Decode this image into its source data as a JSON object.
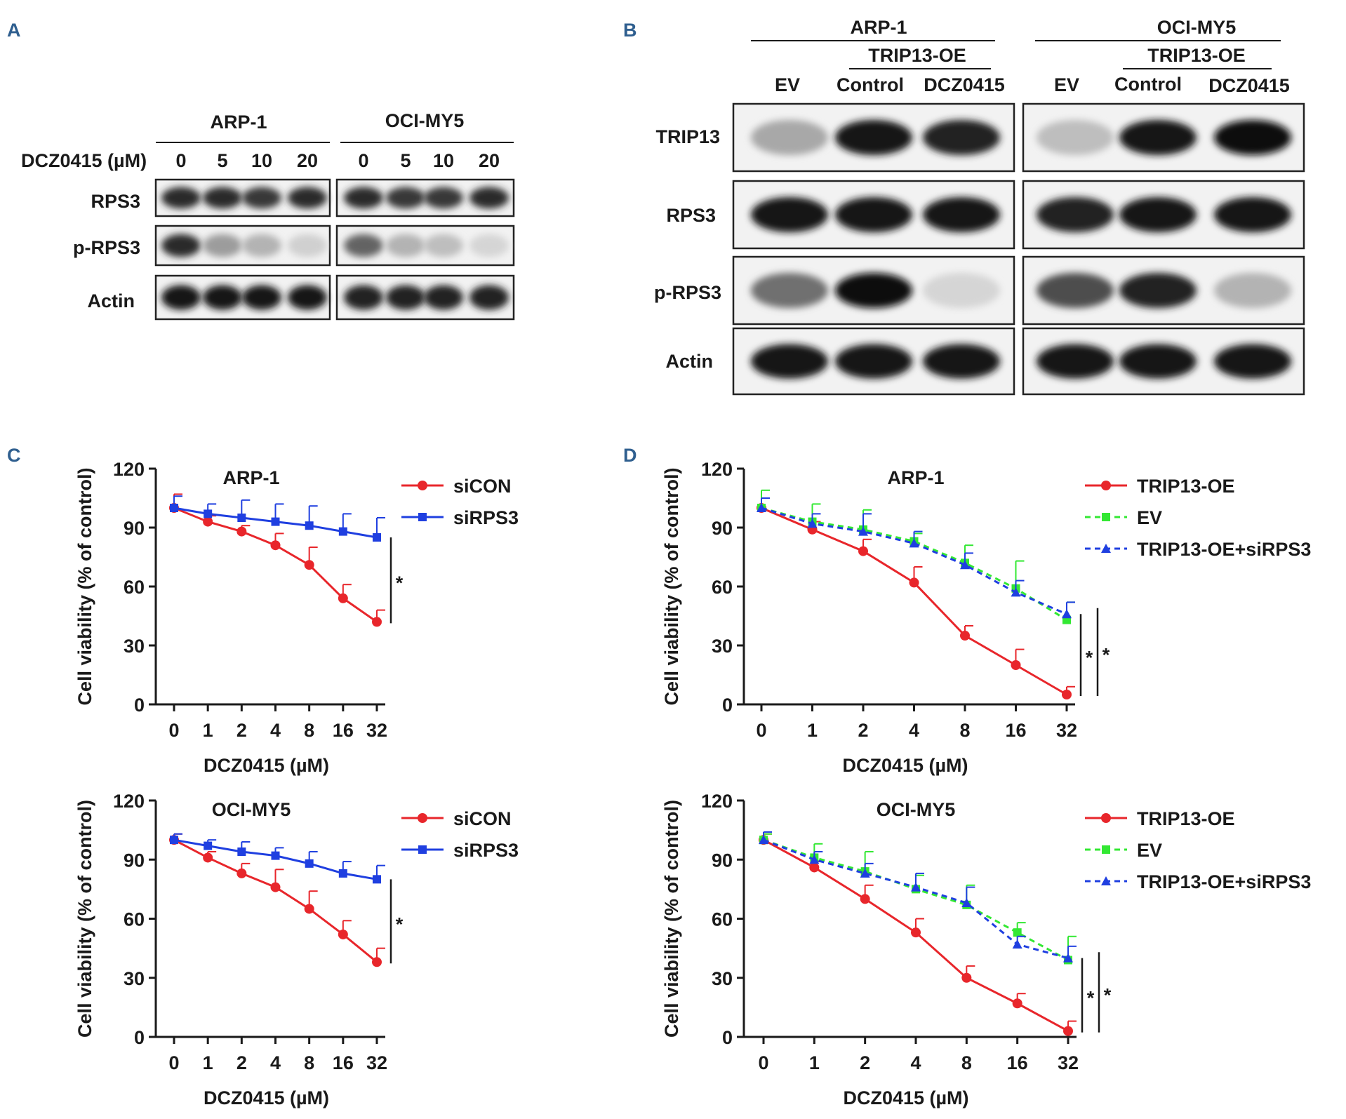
{
  "panels": {
    "A": {
      "letter": "A",
      "groups": [
        "ARP-1",
        "OCI-MY5"
      ],
      "dose_label": "DCZ0415 (µM)",
      "doses": [
        "0",
        "5",
        "10",
        "20",
        "0",
        "5",
        "10",
        "20"
      ],
      "rows": [
        "RPS3",
        "p-RPS3",
        "Actin"
      ]
    },
    "B": {
      "letter": "B",
      "groups": [
        "ARP-1",
        "OCI-MY5"
      ],
      "subgroup": "TRIP13-OE",
      "lanes": [
        "EV",
        "Control",
        "DCZ0415",
        "EV",
        "Control",
        "DCZ0415"
      ],
      "rows": [
        "TRIP13",
        "RPS3",
        "p-RPS3",
        "Actin"
      ]
    },
    "C": {
      "letter": "C"
    },
    "D": {
      "letter": "D"
    }
  },
  "blots": {
    "A": {
      "RPS3": [
        [
          0.85,
          0.85,
          0.8,
          0.85
        ],
        [
          0.85,
          0.8,
          0.8,
          0.85
        ]
      ],
      "p-RPS3": [
        [
          0.85,
          0.35,
          0.25,
          0.12
        ],
        [
          0.6,
          0.25,
          0.2,
          0.1
        ]
      ],
      "Actin": [
        [
          0.95,
          0.95,
          0.95,
          0.95
        ],
        [
          0.9,
          0.9,
          0.9,
          0.9
        ]
      ]
    },
    "B": {
      "TRIP13": [
        [
          0.3,
          0.95,
          0.9
        ],
        [
          0.2,
          0.95,
          1.0
        ]
      ],
      "RPS3": [
        [
          0.95,
          0.95,
          0.95
        ],
        [
          0.9,
          0.95,
          0.95
        ]
      ],
      "p-RPS3": [
        [
          0.55,
          1.0,
          0.1
        ],
        [
          0.7,
          0.9,
          0.25
        ]
      ],
      "Actin": [
        [
          0.95,
          0.95,
          0.95
        ],
        [
          0.95,
          0.95,
          0.95
        ]
      ]
    }
  },
  "colors": {
    "red": "#e8262b",
    "blue": "#1f3fe0",
    "green": "#33e833",
    "letter": "#2f5f8f"
  },
  "chart_data": [
    {
      "panel": "C",
      "type": "line",
      "title": "ARP-1",
      "xlabel": "DCZ0415 (µM)",
      "ylabel": "Cell viability (% of control)",
      "categories": [
        "0",
        "1",
        "2",
        "4",
        "8",
        "16",
        "32"
      ],
      "ylim": [
        0,
        120
      ],
      "yticks": [
        "0",
        "30",
        "60",
        "90",
        "120"
      ],
      "significance": [
        "*"
      ],
      "series": [
        {
          "name": "siCON",
          "color": "#e8262b",
          "marker": "circle",
          "dash": false,
          "values": [
            100,
            93,
            88,
            81,
            71,
            54,
            42
          ],
          "err": [
            7,
            3,
            3,
            6,
            9,
            7,
            6
          ]
        },
        {
          "name": "siRPS3",
          "color": "#1f3fe0",
          "marker": "square",
          "dash": false,
          "values": [
            100,
            97,
            95,
            93,
            91,
            88,
            85
          ],
          "err": [
            6,
            5,
            9,
            9,
            10,
            9,
            10
          ]
        }
      ]
    },
    {
      "panel": "C",
      "type": "line",
      "title": "OCI-MY5",
      "xlabel": "DCZ0415 (µM)",
      "ylabel": "Cell viability (% of control)",
      "categories": [
        "0",
        "1",
        "2",
        "4",
        "8",
        "16",
        "32"
      ],
      "ylim": [
        0,
        120
      ],
      "yticks": [
        "0",
        "30",
        "60",
        "90",
        "120"
      ],
      "significance": [
        "*"
      ],
      "series": [
        {
          "name": "siCON",
          "color": "#e8262b",
          "marker": "circle",
          "dash": false,
          "values": [
            100,
            91,
            83,
            76,
            65,
            52,
            38
          ],
          "err": [
            3,
            3,
            5,
            9,
            9,
            7,
            7
          ]
        },
        {
          "name": "siRPS3",
          "color": "#1f3fe0",
          "marker": "square",
          "dash": false,
          "values": [
            100,
            97,
            94,
            92,
            88,
            83,
            80
          ],
          "err": [
            3,
            3,
            5,
            4,
            6,
            6,
            7
          ]
        }
      ]
    },
    {
      "panel": "D",
      "type": "line",
      "title": "ARP-1",
      "xlabel": "DCZ0415 (µM)",
      "ylabel": "Cell viability (% of control)",
      "categories": [
        "0",
        "1",
        "2",
        "4",
        "8",
        "16",
        "32"
      ],
      "ylim": [
        0,
        120
      ],
      "yticks": [
        "0",
        "30",
        "60",
        "90",
        "120"
      ],
      "significance": [
        "*",
        "*"
      ],
      "series": [
        {
          "name": "TRIP13-OE",
          "color": "#e8262b",
          "marker": "circle",
          "dash": false,
          "values": [
            100,
            89,
            78,
            62,
            35,
            20,
            5
          ],
          "err": [
            5,
            4,
            6,
            8,
            5,
            8,
            4
          ]
        },
        {
          "name": "EV",
          "color": "#33e833",
          "marker": "square",
          "dash": true,
          "values": [
            100,
            93,
            89,
            83,
            72,
            59,
            43
          ],
          "err": [
            9,
            9,
            10,
            4,
            9,
            14,
            9
          ]
        },
        {
          "name": "TRIP13-OE+siRPS3",
          "color": "#1f3fe0",
          "marker": "triangle",
          "dash": true,
          "values": [
            100,
            92,
            88,
            82,
            71,
            57,
            46
          ],
          "err": [
            5,
            5,
            9,
            6,
            6,
            6,
            6
          ]
        }
      ]
    },
    {
      "panel": "D",
      "type": "line",
      "title": "OCI-MY5",
      "xlabel": "DCZ0415 (µM)",
      "ylabel": "Cell viability (% of control)",
      "categories": [
        "0",
        "1",
        "2",
        "4",
        "8",
        "16",
        "32"
      ],
      "ylim": [
        0,
        120
      ],
      "yticks": [
        "0",
        "30",
        "60",
        "90",
        "120"
      ],
      "significance": [
        "*",
        "*"
      ],
      "series": [
        {
          "name": "TRIP13-OE",
          "color": "#e8262b",
          "marker": "circle",
          "dash": false,
          "values": [
            100,
            86,
            70,
            53,
            30,
            17,
            3
          ],
          "err": [
            3,
            3,
            7,
            7,
            6,
            5,
            5
          ]
        },
        {
          "name": "EV",
          "color": "#33e833",
          "marker": "square",
          "dash": true,
          "values": [
            100,
            91,
            84,
            75,
            67,
            53,
            39
          ],
          "err": [
            3,
            7,
            10,
            7,
            10,
            5,
            12
          ]
        },
        {
          "name": "TRIP13-OE+siRPS3",
          "color": "#1f3fe0",
          "marker": "triangle",
          "dash": true,
          "values": [
            100,
            90,
            83,
            76,
            68,
            47,
            40
          ],
          "err": [
            4,
            4,
            5,
            7,
            8,
            4,
            6
          ]
        }
      ]
    }
  ]
}
